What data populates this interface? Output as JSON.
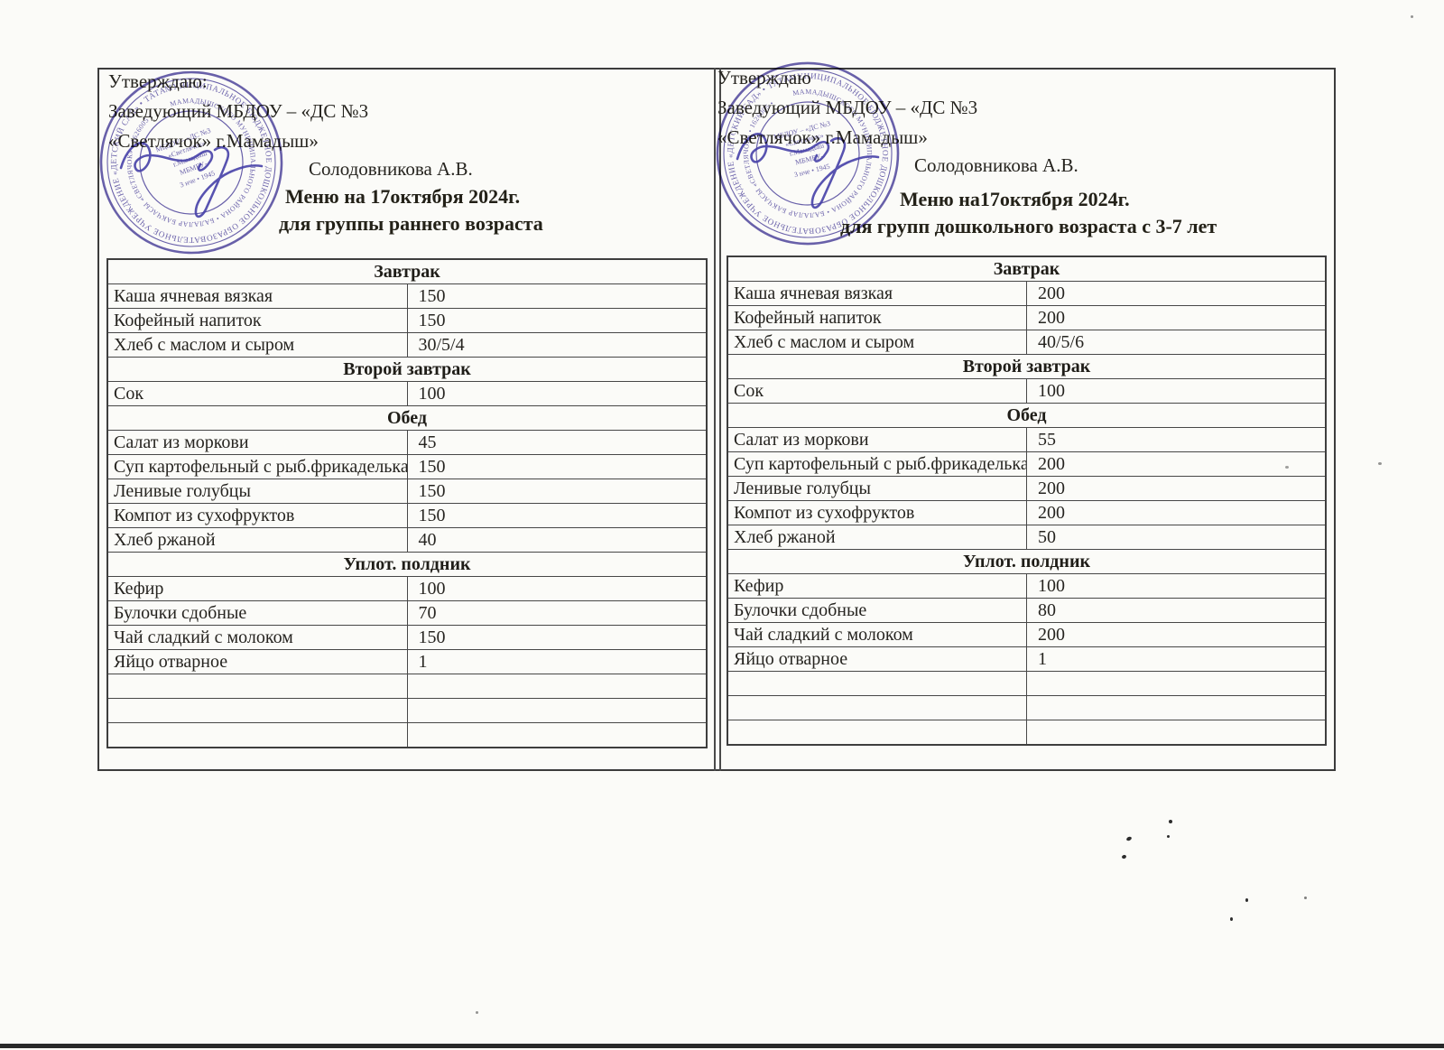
{
  "stamp": {
    "ring_outer": "МУНИЦИПАЛЬНОЕ БЮДЖЕТНОЕ ДОШКОЛЬНОЕ ОБРАЗОВАТЕЛЬНОЕ УЧРЕЖДЕНИЕ «ДЕТСКИЙ САД» • ТАТАРСТАН РЕСПУБЛИКАСЫ •",
    "ring_inner": "МАМАДЫШСКОГО МУНИЦИПАЛЬНОГО РАЙОНА • БАЛАЛАР БАКЧАСЫ «СВЕТЛЯЧОК» • 1626005 •",
    "center_line1": "МБДОУ – «ДС №3",
    "center_line2": "«Светлячок»",
    "center_line3": "г.Мамадыш",
    "center_line4": "МБМБУ-",
    "center_line5": "3 нче • 1945",
    "ink_color": "#4a3f9d"
  },
  "menus": [
    {
      "approval": {
        "line1": "Утверждаю:",
        "line2": "Заведующий МБДОУ – «ДС №3",
        "line3": "«Светлячок» г.Мамадыш»",
        "signatory": "Солодовникова А.В."
      },
      "title": "Меню на 17октября 2024г.",
      "subtitle": "для группы раннего возраста",
      "rows": [
        {
          "section": "Завтрак"
        },
        {
          "dish": "Каша ячневая вязкая",
          "qty": "150"
        },
        {
          "dish": "Кофейный напиток",
          "qty": "150"
        },
        {
          "dish": "Хлеб с маслом и сыром",
          "qty": "30/5/4"
        },
        {
          "section": "Второй завтрак"
        },
        {
          "dish": "Сок",
          "qty": "100"
        },
        {
          "section": "Обед"
        },
        {
          "dish": "Салат из моркови",
          "qty": "45"
        },
        {
          "dish": "Суп картофельный с рыб.фрикадельками",
          "qty": "150"
        },
        {
          "dish": "Ленивые голубцы",
          "qty": "150"
        },
        {
          "dish": "Компот из сухофруктов",
          "qty": "150"
        },
        {
          "dish": "Хлеб ржаной",
          "qty": "40"
        },
        {
          "section": "Уплот. полдник"
        },
        {
          "dish": "Кефир",
          "qty": "100"
        },
        {
          "dish": "Булочки сдобные",
          "qty": "70"
        },
        {
          "dish": "Чай сладкий с молоком",
          "qty": "150"
        },
        {
          "dish": "Яйцо отварное",
          "qty": "1"
        },
        {
          "dish": "",
          "qty": ""
        },
        {
          "dish": "",
          "qty": ""
        },
        {
          "dish": "",
          "qty": ""
        }
      ]
    },
    {
      "approval": {
        "line1": "Утверждаю",
        "line2": "Заведующий МБДОУ – «ДС №3",
        "line3": "«Светлячок» г.Мамадыш»",
        "signatory": "Солодовникова А.В."
      },
      "title": "Меню на17октября 2024г.",
      "subtitle": "для групп дошкольного возраста с 3-7 лет",
      "rows": [
        {
          "section": "Завтрак"
        },
        {
          "dish": "Каша ячневая вязкая",
          "qty": "200"
        },
        {
          "dish": "Кофейный напиток",
          "qty": "200"
        },
        {
          "dish": "Хлеб с маслом и сыром",
          "qty": "40/5/6"
        },
        {
          "section": "Второй завтрак"
        },
        {
          "dish": "Сок",
          "qty": "100"
        },
        {
          "section": "Обед"
        },
        {
          "dish": "Салат из моркови",
          "qty": "55"
        },
        {
          "dish": "Суп картофельный с рыб.фрикадельками",
          "qty": "200"
        },
        {
          "dish": "Ленивые голубцы",
          "qty": "200"
        },
        {
          "dish": "Компот из сухофруктов",
          "qty": "200"
        },
        {
          "dish": "Хлеб ржаной",
          "qty": "50"
        },
        {
          "section": "Уплот. полдник"
        },
        {
          "dish": "Кефир",
          "qty": "100"
        },
        {
          "dish": "Булочки сдобные",
          "qty": "80"
        },
        {
          "dish": "Чай сладкий с молоком",
          "qty": "200"
        },
        {
          "dish": "Яйцо отварное",
          "qty": "1"
        },
        {
          "dish": "",
          "qty": ""
        },
        {
          "dish": "",
          "qty": ""
        },
        {
          "dish": "",
          "qty": ""
        }
      ]
    }
  ]
}
